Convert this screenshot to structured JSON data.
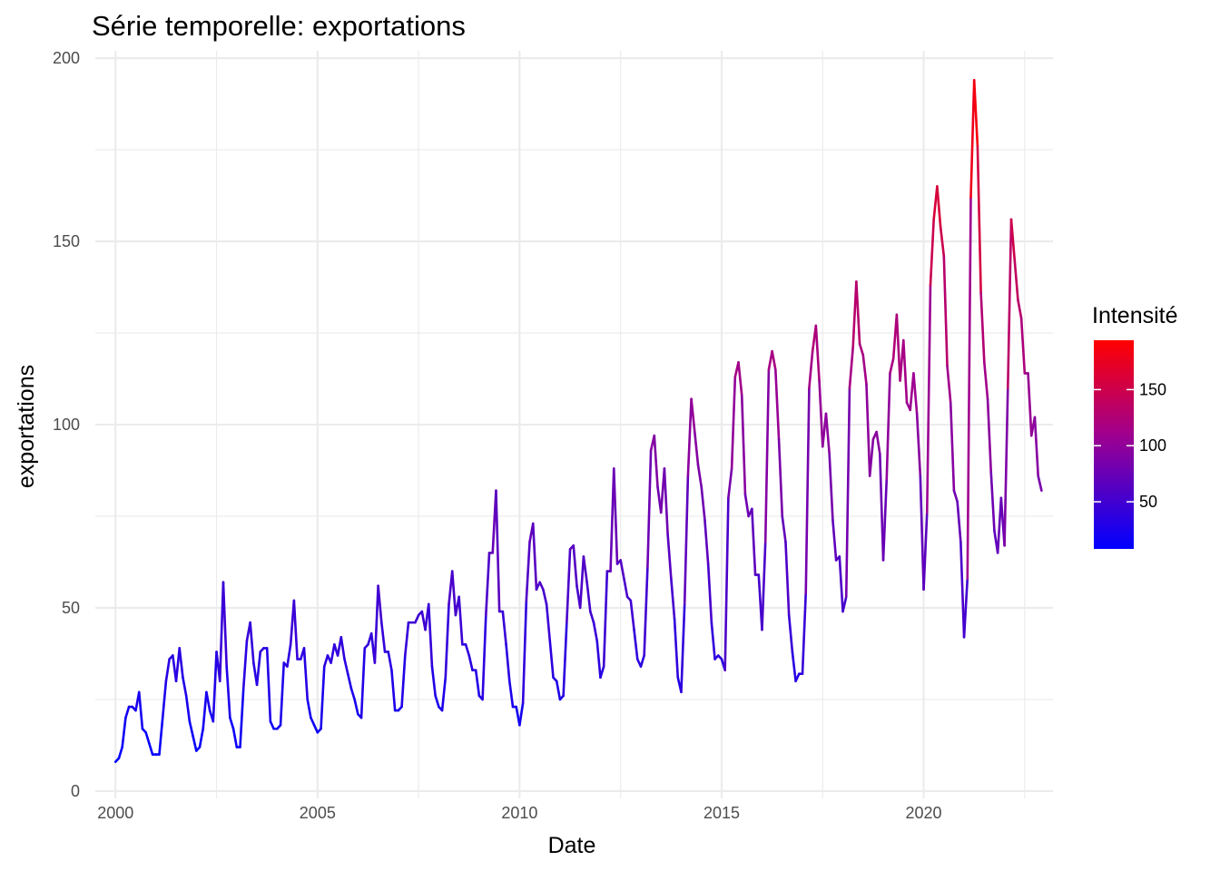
{
  "chart_data": {
    "type": "line",
    "title": "Série temporelle:  exportations",
    "xlabel": "Date",
    "ylabel": "exportations",
    "x_start": "2000-01",
    "x_frequency": "monthly",
    "xlim": [
      1999.5,
      2023.2
    ],
    "ylim": [
      -2,
      202
    ],
    "x_ticks": [
      2000,
      2005,
      2010,
      2015,
      2020
    ],
    "x_tick_labels": [
      "2000",
      "2005",
      "2010",
      "2015",
      "2020"
    ],
    "y_ticks": [
      0,
      50,
      100,
      150,
      200
    ],
    "y_tick_labels": [
      "0",
      "50",
      "100",
      "150",
      "200"
    ],
    "grid": true,
    "legend": {
      "title": "Intensité",
      "placement": "right",
      "type": "colorbar",
      "range": [
        8,
        194
      ],
      "ticks": [
        50,
        100,
        150
      ],
      "tick_labels": [
        "50",
        "100",
        "150"
      ],
      "color_low": "#0000FF",
      "color_high": "#FF0000"
    },
    "series": [
      {
        "values": [
          8,
          9,
          12,
          20,
          23,
          23,
          22,
          27,
          17,
          16,
          13,
          10,
          10,
          10,
          20,
          30,
          36,
          37,
          30,
          39,
          31,
          26,
          19,
          15,
          11,
          12,
          17,
          27,
          22,
          19,
          38,
          30,
          57,
          34,
          20,
          17,
          12,
          12,
          28,
          41,
          46,
          35,
          29,
          38,
          39,
          39,
          19,
          17,
          17,
          18,
          35,
          34,
          40,
          52,
          36,
          36,
          39,
          25,
          20,
          18,
          16,
          17,
          34,
          37,
          35,
          40,
          37,
          42,
          36,
          32,
          28,
          25,
          21,
          20,
          39,
          40,
          43,
          35,
          56,
          46,
          38,
          38,
          33,
          22,
          22,
          23,
          37,
          46,
          46,
          46,
          48,
          49,
          44,
          51,
          34,
          26,
          23,
          22,
          31,
          51,
          60,
          48,
          53,
          40,
          40,
          37,
          33,
          33,
          26,
          25,
          48,
          65,
          65,
          82,
          49,
          49,
          40,
          30,
          23,
          23,
          18,
          24,
          52,
          68,
          73,
          55,
          57,
          55,
          51,
          41,
          31,
          30,
          25,
          26,
          46,
          66,
          67,
          56,
          50,
          64,
          57,
          49,
          46,
          41,
          31,
          34,
          60,
          60,
          88,
          62,
          63,
          58,
          53,
          52,
          44,
          36,
          34,
          37,
          61,
          93,
          97,
          83,
          76,
          88,
          70,
          58,
          47,
          31,
          27,
          51,
          86,
          107,
          98,
          89,
          83,
          74,
          62,
          46,
          36,
          37,
          36,
          33,
          80,
          88,
          113,
          117,
          108,
          81,
          75,
          77,
          59,
          59,
          44,
          68,
          115,
          120,
          115,
          96,
          75,
          68,
          48,
          38,
          30,
          32,
          32,
          54,
          110,
          120,
          127,
          112,
          94,
          103,
          92,
          74,
          63,
          64,
          49,
          53,
          110,
          121,
          139,
          122,
          119,
          111,
          86,
          96,
          98,
          92,
          63,
          85,
          114,
          118,
          130,
          112,
          123,
          106,
          104,
          114,
          103,
          86,
          55,
          76,
          138,
          156,
          165,
          154,
          146,
          116,
          106,
          82,
          79,
          68,
          42,
          58,
          162,
          194,
          176,
          136,
          117,
          107,
          87,
          71,
          65,
          80,
          67,
          110,
          156,
          145,
          134,
          129,
          114,
          114,
          97,
          102,
          86,
          82
        ]
      }
    ]
  }
}
